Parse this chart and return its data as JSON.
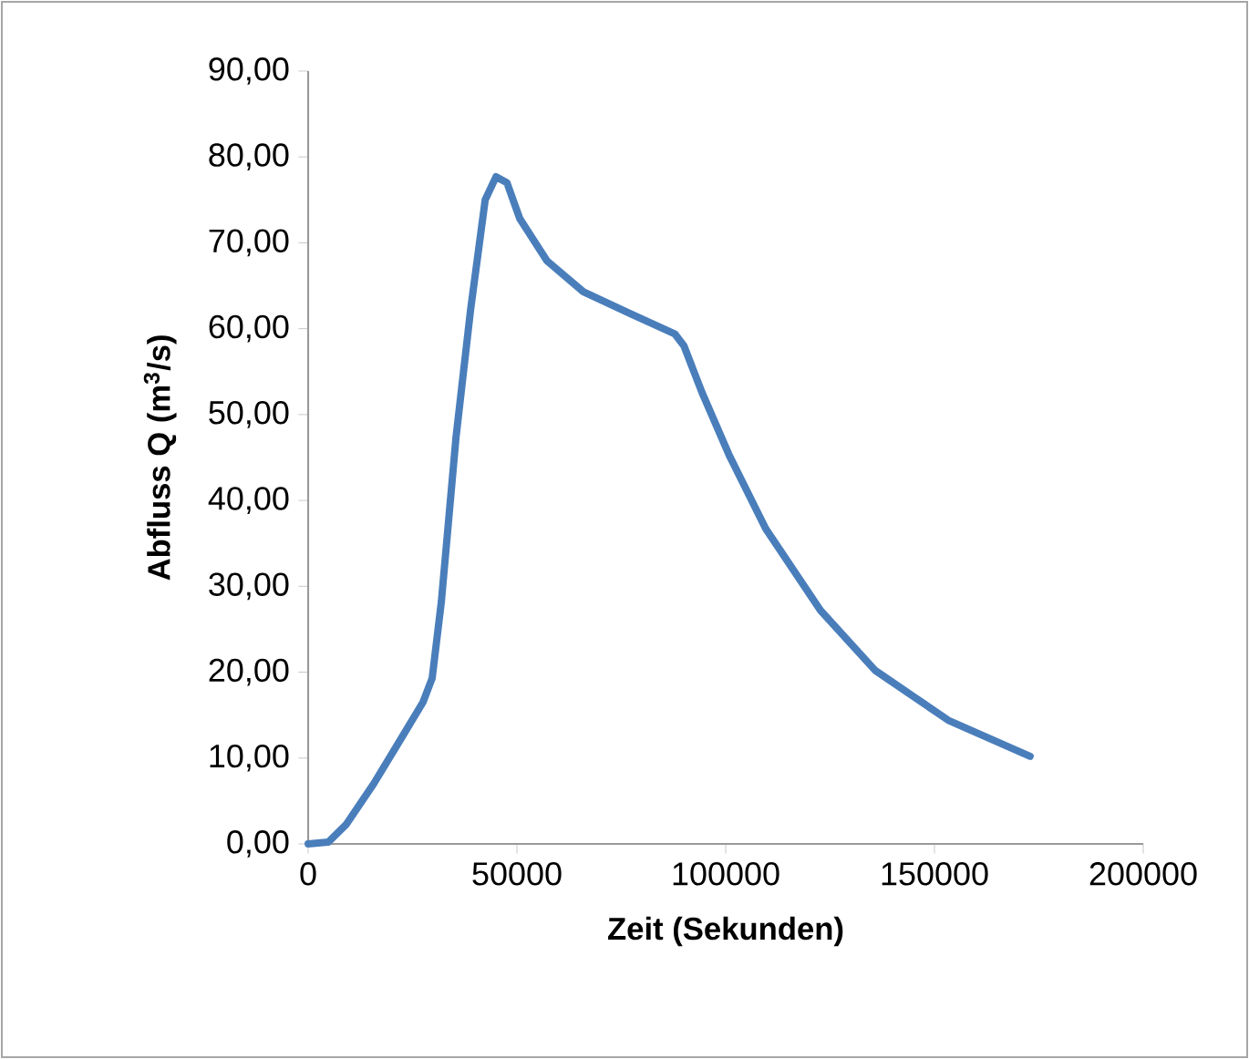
{
  "chart_data": {
    "type": "line",
    "xlabel": "Zeit (Sekunden)",
    "ylabel": "Abfluss Q (m$^{3}$/s)",
    "x": [
      0,
      4800,
      9170,
      15700,
      22300,
      27500,
      29700,
      31900,
      35400,
      38900,
      42400,
      45000,
      47600,
      50700,
      57200,
      65900,
      76900,
      87800,
      90000,
      94300,
      100900,
      109600,
      122700,
      135800,
      153300,
      172900
    ],
    "series": [
      {
        "color": "#4a7ebb",
        "values": [
          0,
          0.2,
          2.3,
          7,
          12.3,
          16.5,
          19.3,
          28.2,
          47.3,
          62.2,
          75,
          77.7,
          77,
          72.8,
          67.9,
          64.3,
          61.8,
          59.4,
          58,
          52.6,
          45.2,
          36.7,
          27.2,
          20.2,
          14.4,
          10.2
        ]
      }
    ],
    "xlim": [
      0,
      200000
    ],
    "xticks": [
      0,
      50000,
      100000,
      150000,
      200000
    ],
    "ylim": [
      0,
      90
    ],
    "yticks": [
      {
        "value": 0,
        "label": "0,00"
      },
      {
        "value": 10,
        "label": "10,00"
      },
      {
        "value": 20,
        "label": "20,00"
      },
      {
        "value": 30,
        "label": "30,00"
      },
      {
        "value": 40,
        "label": "40,00"
      },
      {
        "value": 50,
        "label": "50,00"
      },
      {
        "value": 60,
        "label": "60,00"
      },
      {
        "value": 70,
        "label": "70,00"
      },
      {
        "value": 80,
        "label": "80,00"
      },
      {
        "value": 90,
        "label": "90,00"
      }
    ],
    "grid": false,
    "marker": "none",
    "line_style": "solid"
  }
}
